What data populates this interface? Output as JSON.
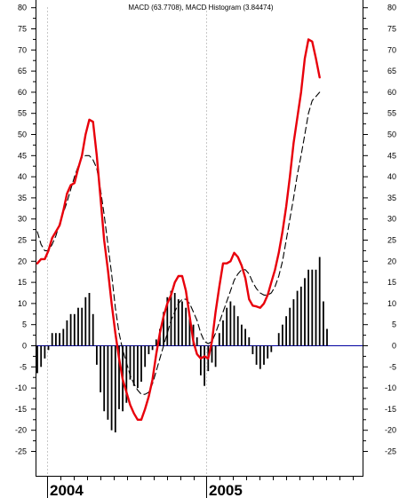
{
  "chart_data": {
    "type": "line",
    "title": "MACD (63.7708), MACD Histogram (3.84474)",
    "x_labels": [
      "2004",
      "2005"
    ],
    "y_ticks": [
      80,
      75,
      70,
      65,
      60,
      55,
      50,
      45,
      40,
      35,
      30,
      25,
      20,
      15,
      10,
      5,
      0,
      -5,
      -10,
      -15,
      -20,
      -25
    ],
    "ylim": [
      -30,
      82
    ],
    "x_count": 82,
    "grid": "vertical dotted lines at year boundaries",
    "zero_line": true,
    "series": [
      {
        "key": "macd",
        "style": "solid",
        "color": "#e8000b",
        "points": [
          [
            0,
            19.5
          ],
          [
            1,
            20.5
          ],
          [
            2,
            20.5
          ],
          [
            3,
            22.5
          ],
          [
            4,
            25.5
          ],
          [
            5,
            27
          ],
          [
            6,
            28.5
          ],
          [
            7,
            32
          ],
          [
            8,
            36
          ],
          [
            9,
            38
          ],
          [
            10,
            38.5
          ],
          [
            11,
            42
          ],
          [
            12,
            45
          ],
          [
            13,
            50
          ],
          [
            14,
            53.5
          ],
          [
            15,
            53
          ],
          [
            16,
            45
          ],
          [
            17,
            35
          ],
          [
            18,
            25
          ],
          [
            19,
            18
          ],
          [
            20,
            10
          ],
          [
            21,
            3
          ],
          [
            22,
            -3
          ],
          [
            23,
            -8
          ],
          [
            24,
            -11
          ],
          [
            25,
            -14
          ],
          [
            26,
            -16
          ],
          [
            27,
            -17.5
          ],
          [
            28,
            -17.5
          ],
          [
            29,
            -15
          ],
          [
            30,
            -12
          ],
          [
            31,
            -8
          ],
          [
            32,
            -2
          ],
          [
            33,
            3
          ],
          [
            34,
            7
          ],
          [
            35,
            10
          ],
          [
            36,
            12
          ],
          [
            37,
            15
          ],
          [
            38,
            16.5
          ],
          [
            39,
            16.5
          ],
          [
            40,
            13
          ],
          [
            41,
            7
          ],
          [
            42,
            1
          ],
          [
            43,
            -2
          ],
          [
            44,
            -3
          ],
          [
            45,
            -2.5
          ],
          [
            46,
            -3
          ],
          [
            47,
            1
          ],
          [
            48,
            8
          ],
          [
            49,
            14
          ],
          [
            50,
            19.5
          ],
          [
            51,
            19.5
          ],
          [
            52,
            20
          ],
          [
            53,
            22
          ],
          [
            54,
            21
          ],
          [
            55,
            19
          ],
          [
            56,
            16
          ],
          [
            57,
            11
          ],
          [
            58,
            9.5
          ],
          [
            59,
            9.3
          ],
          [
            60,
            9
          ],
          [
            61,
            10
          ],
          [
            62,
            12
          ],
          [
            63,
            15
          ],
          [
            64,
            18
          ],
          [
            65,
            22
          ],
          [
            66,
            27
          ],
          [
            67,
            33
          ],
          [
            68,
            40
          ],
          [
            69,
            48
          ],
          [
            70,
            54
          ],
          [
            71,
            60
          ],
          [
            72,
            68
          ],
          [
            73,
            72.5
          ],
          [
            74,
            72
          ],
          [
            75,
            68
          ],
          [
            76,
            63.5
          ]
        ]
      },
      {
        "key": "signal",
        "style": "dashed",
        "color": "#000000",
        "points": [
          [
            0,
            27
          ],
          [
            1,
            24
          ],
          [
            2,
            22.5
          ],
          [
            3,
            22.5
          ],
          [
            4,
            24
          ],
          [
            5,
            26
          ],
          [
            6,
            29
          ],
          [
            7,
            31.5
          ],
          [
            8,
            34
          ],
          [
            9,
            37
          ],
          [
            10,
            40
          ],
          [
            11,
            42.5
          ],
          [
            12,
            44.5
          ],
          [
            13,
            45
          ],
          [
            14,
            45
          ],
          [
            15,
            44
          ],
          [
            16,
            42
          ],
          [
            17,
            37
          ],
          [
            18,
            31
          ],
          [
            19,
            24
          ],
          [
            20,
            17
          ],
          [
            21,
            9
          ],
          [
            22,
            3
          ],
          [
            23,
            -1
          ],
          [
            24,
            -4
          ],
          [
            25,
            -7
          ],
          [
            26,
            -9
          ],
          [
            27,
            -10.5
          ],
          [
            28,
            -11.5
          ],
          [
            29,
            -11.5
          ],
          [
            30,
            -11
          ],
          [
            31,
            -9
          ],
          [
            32,
            -6
          ],
          [
            33,
            -3
          ],
          [
            34,
            0
          ],
          [
            35,
            3
          ],
          [
            36,
            6
          ],
          [
            37,
            8
          ],
          [
            38,
            10
          ],
          [
            39,
            11
          ],
          [
            40,
            11
          ],
          [
            41,
            10
          ],
          [
            42,
            8
          ],
          [
            43,
            6
          ],
          [
            44,
            3
          ],
          [
            45,
            1
          ],
          [
            46,
            0.5
          ],
          [
            47,
            1
          ],
          [
            48,
            3
          ],
          [
            49,
            5.5
          ],
          [
            50,
            8
          ],
          [
            51,
            10.5
          ],
          [
            52,
            13
          ],
          [
            53,
            15.5
          ],
          [
            54,
            17
          ],
          [
            55,
            18
          ],
          [
            56,
            18
          ],
          [
            57,
            17
          ],
          [
            58,
            15
          ],
          [
            59,
            13.5
          ],
          [
            60,
            12.5
          ],
          [
            61,
            12
          ],
          [
            62,
            12
          ],
          [
            63,
            12.5
          ],
          [
            64,
            14
          ],
          [
            65,
            16.5
          ],
          [
            66,
            20
          ],
          [
            67,
            25
          ],
          [
            68,
            30
          ],
          [
            69,
            35
          ],
          [
            70,
            40.5
          ],
          [
            71,
            45
          ],
          [
            72,
            50
          ],
          [
            73,
            55
          ],
          [
            74,
            58
          ],
          [
            75,
            59
          ],
          [
            76,
            60
          ]
        ]
      }
    ],
    "histogram": [
      -6.5,
      -5,
      -3,
      -1,
      3,
      3,
      3,
      4,
      6,
      7.5,
      7.5,
      9,
      9,
      11.5,
      12.5,
      7.5,
      -4.5,
      -11,
      -15.5,
      -17.5,
      -20,
      -20.5,
      -15,
      -15.5,
      -13.5,
      -8,
      -9.5,
      -10,
      -8.5,
      -5,
      -2,
      -1,
      1.5,
      4,
      8,
      11.5,
      13,
      12.5,
      11,
      10.5,
      9,
      7,
      5,
      2,
      -7,
      -9.5,
      -6,
      -4,
      -5,
      3,
      6,
      9,
      10.5,
      9.5,
      7,
      5,
      4,
      2,
      -2,
      -4.5,
      -5.5,
      -4.5,
      -3,
      -1.5,
      0,
      3,
      5,
      7,
      9,
      11,
      13,
      14,
      16,
      18,
      18,
      18,
      21,
      10.5,
      4
    ]
  }
}
